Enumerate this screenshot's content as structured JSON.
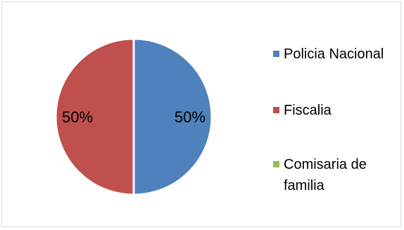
{
  "chart_data": {
    "type": "pie",
    "title": "",
    "categories": [
      "Policia Nacional",
      "Fiscalia",
      "Comisaria de familia"
    ],
    "values": [
      50,
      50,
      0
    ],
    "data_labels": [
      "50%",
      "50%",
      ""
    ],
    "colors": [
      "#4f81bd",
      "#c0504d",
      "#9bbb59"
    ],
    "legend_position": "right"
  }
}
